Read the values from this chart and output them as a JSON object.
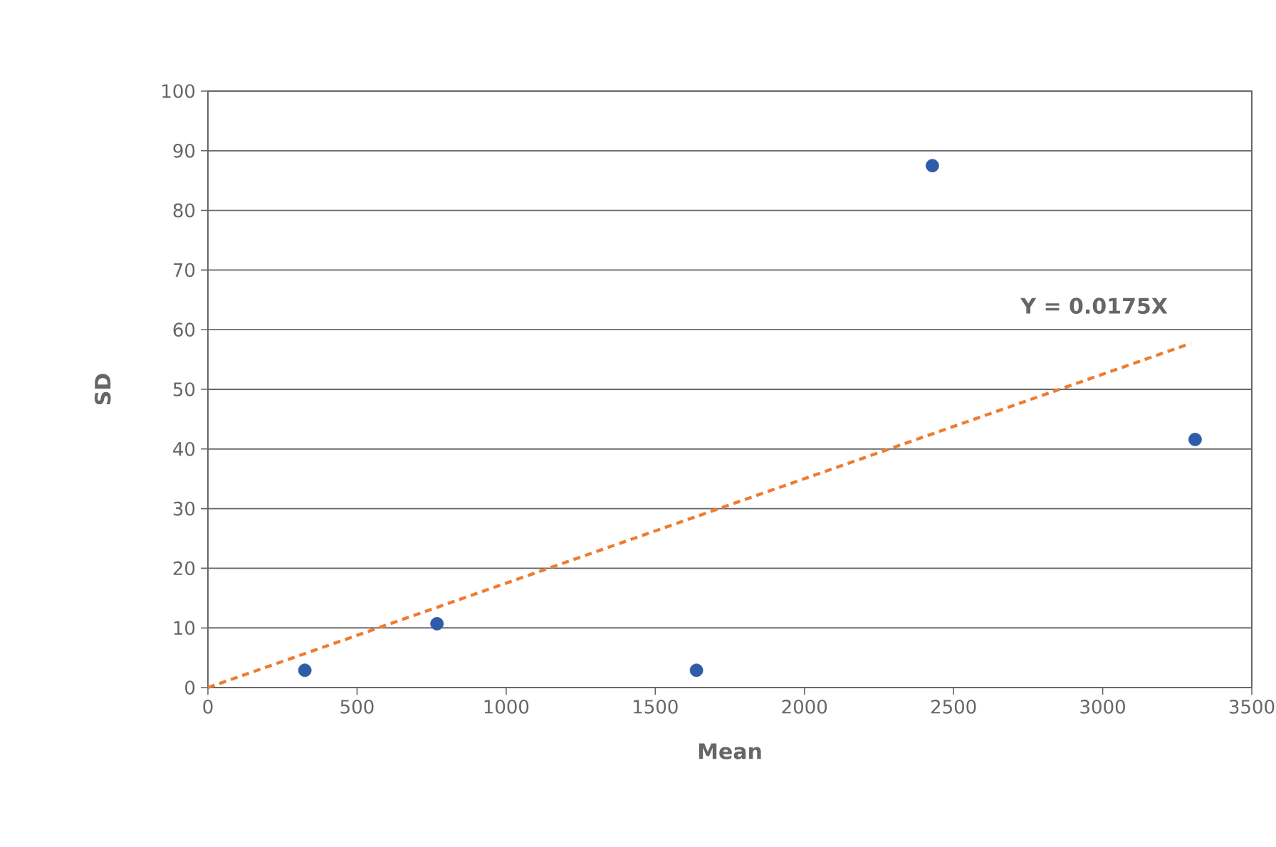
{
  "chart_data": {
    "type": "scatter",
    "xlabel": "Mean",
    "ylabel": "SD",
    "series": [
      {
        "color": "#2e5ca8",
        "marker": "circle",
        "x": [
          325,
          768,
          1638,
          2429,
          3310
        ],
        "values": [
          2.9,
          10.7,
          2.9,
          87.5,
          41.6
        ]
      },
      {
        "type": "line",
        "color": "#ed7d31",
        "marker": "none",
        "line_style": "dashed",
        "x": [
          0,
          3295
        ],
        "values": [
          0,
          57.7
        ]
      }
    ],
    "xlim": [
      0,
      3500
    ],
    "xticks": [
      0,
      500,
      1000,
      1500,
      2000,
      2500,
      3000,
      3500
    ],
    "ylim": [
      0,
      100
    ],
    "yticks": [
      0,
      10,
      20,
      30,
      40,
      50,
      60,
      70,
      80,
      90,
      100
    ],
    "grid": "y",
    "annotations": [
      "Y = 0.0175X"
    ]
  }
}
